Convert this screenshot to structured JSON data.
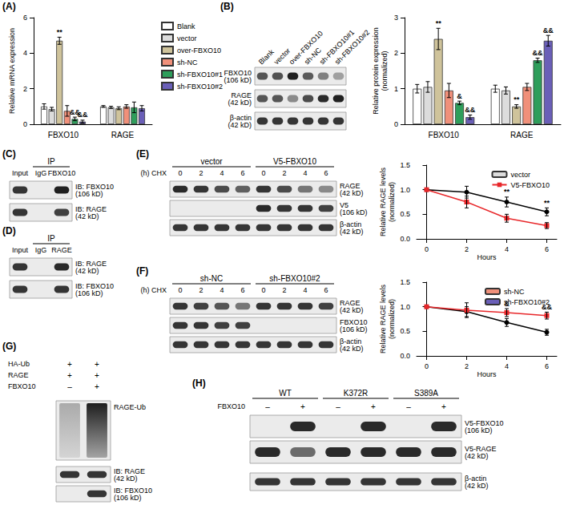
{
  "chart_data": [
    {
      "type": "bar",
      "title": "(A)",
      "y_label": "Relative mRNA expression",
      "categories": [
        "FBXO10",
        "RAGE"
      ],
      "ylim": [
        0,
        6
      ],
      "yticks": [
        0,
        2,
        4,
        6
      ],
      "grid": false,
      "legend": "right",
      "series": [
        {
          "name": "Blank",
          "color": "#ffffff",
          "values": [
            1.0,
            1.0
          ],
          "errors": [
            0.15,
            0.05
          ],
          "significance": [
            null,
            null
          ]
        },
        {
          "name": "vector",
          "color": "#dcdcdc",
          "values": [
            0.85,
            0.95
          ],
          "errors": [
            0.1,
            0.06
          ],
          "significance": [
            null,
            null
          ]
        },
        {
          "name": "over-FBXO10",
          "color": "#cfc39b",
          "values": [
            4.7,
            0.9
          ],
          "errors": [
            0.2,
            0.08
          ],
          "significance": [
            "**",
            null
          ]
        },
        {
          "name": "sh-NC",
          "color": "#f0907a",
          "values": [
            0.75,
            1.0
          ],
          "errors": [
            0.3,
            0.1
          ],
          "significance": [
            null,
            null
          ]
        },
        {
          "name": "sh-FBXO10#1",
          "color": "#2e9e5b",
          "values": [
            0.3,
            0.95
          ],
          "errors": [
            0.1,
            0.3
          ],
          "significance": [
            "&&",
            null
          ]
        },
        {
          "name": "sh-FBXO10#2",
          "color": "#6a5fb8",
          "values": [
            0.15,
            0.9
          ],
          "errors": [
            0.08,
            0.15
          ],
          "significance": [
            "&&",
            null
          ]
        }
      ]
    },
    {
      "type": "bar",
      "y_label": "Relative protein expression\n(normalized)",
      "categories": [
        "FBXO10",
        "RAGE"
      ],
      "ylim": [
        0,
        3
      ],
      "yticks": [
        0,
        1,
        2,
        3
      ],
      "grid": false,
      "series": [
        {
          "name": "Blank",
          "color": "#ffffff",
          "values": [
            1.0,
            1.0
          ],
          "errors": [
            0.12,
            0.1
          ],
          "significance": [
            null,
            null
          ]
        },
        {
          "name": "vector",
          "color": "#dcdcdc",
          "values": [
            1.05,
            0.95
          ],
          "errors": [
            0.15,
            0.1
          ],
          "significance": [
            null,
            null
          ]
        },
        {
          "name": "over-FBXO10",
          "color": "#cfc39b",
          "values": [
            2.4,
            0.5
          ],
          "errors": [
            0.3,
            0.05
          ],
          "significance": [
            "**",
            "**"
          ]
        },
        {
          "name": "sh-NC",
          "color": "#f0907a",
          "values": [
            0.95,
            1.05
          ],
          "errors": [
            0.2,
            0.1
          ],
          "significance": [
            null,
            null
          ]
        },
        {
          "name": "sh-FBXO10#1",
          "color": "#2e9e5b",
          "values": [
            0.6,
            1.8
          ],
          "errors": [
            0.05,
            0.06
          ],
          "significance": [
            "&",
            "&&"
          ]
        },
        {
          "name": "sh-FBXO10#2",
          "color": "#6a5fb8",
          "values": [
            0.2,
            2.35
          ],
          "errors": [
            0.06,
            0.15
          ],
          "significance": [
            "&&",
            "&&"
          ]
        }
      ]
    },
    {
      "type": "line",
      "x_label": "Hours",
      "y_label": "Relative RAGE levels\n(normalized)",
      "x": [
        0,
        2,
        4,
        6
      ],
      "xlim": [
        -0.5,
        6.5
      ],
      "xticks": [
        0,
        2,
        4,
        6
      ],
      "ylim": [
        0,
        1.5
      ],
      "yticks": [
        {
          "value": 0,
          "label": "0.0"
        },
        {
          "value": 0.5,
          "label": "0.5"
        },
        {
          "value": 1,
          "label": "1.0"
        },
        {
          "value": 1.5,
          "label": "1.5"
        }
      ],
      "grid": false,
      "legend": "top-right",
      "series": [
        {
          "name": "vector",
          "color": "#000000",
          "marker": "circle",
          "values": [
            1.0,
            0.95,
            0.75,
            0.55
          ],
          "errors": [
            0,
            0.12,
            0.1,
            0.08
          ],
          "significance": [
            null,
            null,
            "**",
            "**"
          ]
        },
        {
          "name": "V5-FBXO10",
          "color": "#e8272a",
          "marker": "square",
          "values": [
            1.0,
            0.75,
            0.42,
            0.27
          ],
          "errors": [
            0,
            0.12,
            0.08,
            0.06
          ],
          "significance": [
            null,
            null,
            null,
            null
          ]
        }
      ]
    },
    {
      "type": "line",
      "x_label": "Hours",
      "y_label": "Relative RAGE levels\n(normalized)",
      "x": [
        0,
        2,
        4,
        6
      ],
      "xlim": [
        -0.5,
        6.5
      ],
      "xticks": [
        0,
        2,
        4,
        6
      ],
      "ylim": [
        0,
        1.5
      ],
      "yticks": [
        {
          "value": 0,
          "label": "0.0"
        },
        {
          "value": 0.5,
          "label": "0.5"
        },
        {
          "value": 1,
          "label": "1.0"
        },
        {
          "value": 1.5,
          "label": "1.5"
        }
      ],
      "grid": false,
      "legend": "top-right",
      "series": [
        {
          "name": "sh-NC",
          "color": "#000000",
          "marker": "circle",
          "values": [
            1.0,
            0.9,
            0.68,
            0.48
          ],
          "errors": [
            0,
            0.1,
            0.08,
            0.06
          ],
          "significance": [
            null,
            null,
            null,
            null
          ]
        },
        {
          "name": "sh-FBXO10#2",
          "color": "#e8272a",
          "marker": "square",
          "values": [
            1.0,
            0.93,
            0.88,
            0.82
          ],
          "errors": [
            0,
            0.15,
            0.08,
            0.07
          ],
          "significance": [
            null,
            null,
            "&",
            "&&"
          ]
        }
      ]
    }
  ],
  "blots": [
    {
      "title": "(B)",
      "lanes": [
        "Blank",
        "vector",
        "over-FBXO10",
        "sh-NC",
        "sh-FBXO10#1",
        "sh-FBXO10#2"
      ],
      "rows": [
        {
          "label": "FBXO10\n(106 kD)",
          "bands": [
            0.7,
            0.72,
            0.95,
            0.68,
            0.5,
            0.35
          ]
        },
        {
          "label": "RAGE\n(42 kD)",
          "bands": [
            0.7,
            0.7,
            0.45,
            0.75,
            0.9,
            0.95
          ]
        },
        {
          "label": "β-actin\n(42 kD)",
          "bands": [
            0.85,
            0.85,
            0.85,
            0.85,
            0.85,
            0.85
          ]
        }
      ]
    },
    {
      "title": "(C)",
      "lanes": [
        "Input",
        "IgG",
        "FBXO10"
      ],
      "groups": [
        {
          "label": "IP",
          "span": [
            1,
            2
          ]
        }
      ],
      "rows": [
        {
          "label": "IB: FBXO10\n(106 kD)",
          "bands": [
            0.85,
            0,
            0.95
          ]
        },
        {
          "label": "IB: RAGE\n(42 kD)",
          "bands": [
            0.85,
            0,
            0.8
          ]
        }
      ]
    },
    {
      "title": "(D)",
      "lanes": [
        "Input",
        "IgG",
        "RAGE"
      ],
      "groups": [
        {
          "label": "IP",
          "span": [
            1,
            2
          ]
        }
      ],
      "rows": [
        {
          "label": "IB: RAGE\n(42 kD)",
          "bands": [
            0.85,
            0,
            0.9
          ]
        },
        {
          "label": "IB: FBXO10\n(106 kD)",
          "bands": [
            0.85,
            0,
            0.85
          ]
        }
      ]
    },
    {
      "title": "(E)",
      "groups": [
        {
          "label": "vector",
          "span": [
            0,
            3
          ]
        },
        {
          "label": "V5-FBXO10",
          "span": [
            4,
            7
          ]
        }
      ],
      "time_label": "(h) CHX",
      "lanes": [
        "0",
        "2",
        "4",
        "6",
        "0",
        "2",
        "4",
        "6"
      ],
      "rows": [
        {
          "label": "RAGE\n(42 kD)",
          "bands": [
            0.9,
            0.85,
            0.75,
            0.65,
            0.85,
            0.75,
            0.55,
            0.45
          ]
        },
        {
          "label": "V5\n(106 kD)",
          "bands": [
            0,
            0,
            0,
            0,
            0.9,
            0.85,
            0.85,
            0.8
          ]
        },
        {
          "label": "β-actin\n(42 kD)",
          "bands": [
            0.85,
            0.85,
            0.85,
            0.85,
            0.85,
            0.85,
            0.85,
            0.85
          ]
        }
      ]
    },
    {
      "title": "(F)",
      "groups": [
        {
          "label": "sh-NC",
          "span": [
            0,
            3
          ]
        },
        {
          "label": "sh-FBXO10#2",
          "span": [
            4,
            7
          ]
        }
      ],
      "time_label": "(h) CHX",
      "lanes": [
        "0",
        "2",
        "4",
        "6",
        "0",
        "2",
        "4",
        "6"
      ],
      "rows": [
        {
          "label": "RAGE\n(42 kD)",
          "bands": [
            0.85,
            0.8,
            0.7,
            0.55,
            0.85,
            0.85,
            0.85,
            0.8
          ]
        },
        {
          "label": "FBXO10\n(106 kD)",
          "bands": [
            0.85,
            0.85,
            0.8,
            0.8,
            0,
            0,
            0,
            0
          ]
        },
        {
          "label": "β-actin\n(42 kD)",
          "bands": [
            0.85,
            0.85,
            0.85,
            0.85,
            0.85,
            0.85,
            0.85,
            0.85
          ]
        }
      ]
    },
    {
      "title": "(G)",
      "conditions": [
        {
          "label": "HA-Ub",
          "signs": [
            "+",
            "+"
          ]
        },
        {
          "label": "RAGE",
          "signs": [
            "+",
            "+"
          ]
        },
        {
          "label": "FBXO10",
          "signs": [
            "–",
            "+"
          ]
        }
      ],
      "rows": [
        {
          "label": "RAGE-Ub",
          "smear": [
            0.3,
            0.95
          ]
        },
        {
          "label": "IB: RAGE\n(42 kD)",
          "bands": [
            0.85,
            0.85
          ]
        },
        {
          "label": "IB: FBXO10\n(106 kD)",
          "bands": [
            0,
            0.85
          ]
        }
      ]
    },
    {
      "title": "(H)",
      "groups": [
        {
          "label": "WT",
          "span": [
            0,
            1
          ]
        },
        {
          "label": "K372R",
          "span": [
            2,
            3
          ]
        },
        {
          "label": "S389A",
          "span": [
            4,
            5
          ]
        }
      ],
      "conditions": [
        {
          "label": "FBXO10",
          "signs": [
            "–",
            "+",
            "–",
            "+",
            "–",
            "+"
          ]
        }
      ],
      "rows": [
        {
          "label": "V5-FBXO10\n(106 kD)",
          "bands": [
            0,
            0.9,
            0,
            0.9,
            0,
            0.9
          ]
        },
        {
          "label": "V5-RAGE\n(42 kD)",
          "bands": [
            0.9,
            0.6,
            0.9,
            0.9,
            0.9,
            0.9
          ]
        },
        {
          "label": "β-actin\n(42 kD)",
          "bands": [
            0.85,
            0.85,
            0.85,
            0.85,
            0.85,
            0.85
          ]
        }
      ]
    }
  ]
}
